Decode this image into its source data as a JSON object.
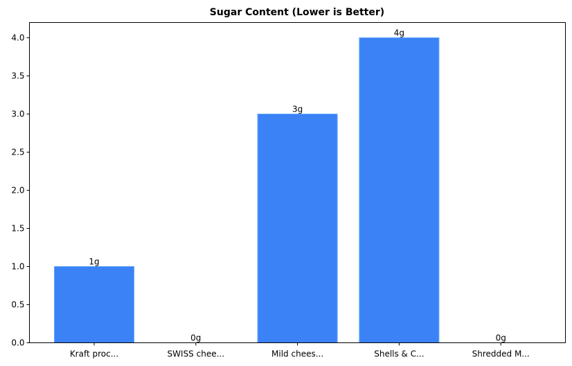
{
  "chart_data": {
    "type": "bar",
    "title": "Sugar Content (Lower is Better)",
    "xlabel": "",
    "ylabel": "",
    "categories": [
      "Kraft proc...",
      "SWISS chee...",
      "Mild chees...",
      "Shells & C...",
      "Shredded M..."
    ],
    "values": [
      1,
      0,
      3,
      4,
      0
    ],
    "value_labels": [
      "1g",
      "0g",
      "3g",
      "4g",
      "0g"
    ],
    "ylim": [
      0,
      4.2
    ],
    "yticks": [
      0.0,
      0.5,
      1.0,
      1.5,
      2.0,
      2.5,
      3.0,
      3.5,
      4.0
    ],
    "ytick_labels": [
      "0.0",
      "0.5",
      "1.0",
      "1.5",
      "2.0",
      "2.5",
      "3.0",
      "3.5",
      "4.0"
    ],
    "grid": false,
    "legend": null,
    "colors": {
      "bar": "#3b82f6",
      "bar_edge": "#60a5fa",
      "axes": "#000000"
    }
  }
}
